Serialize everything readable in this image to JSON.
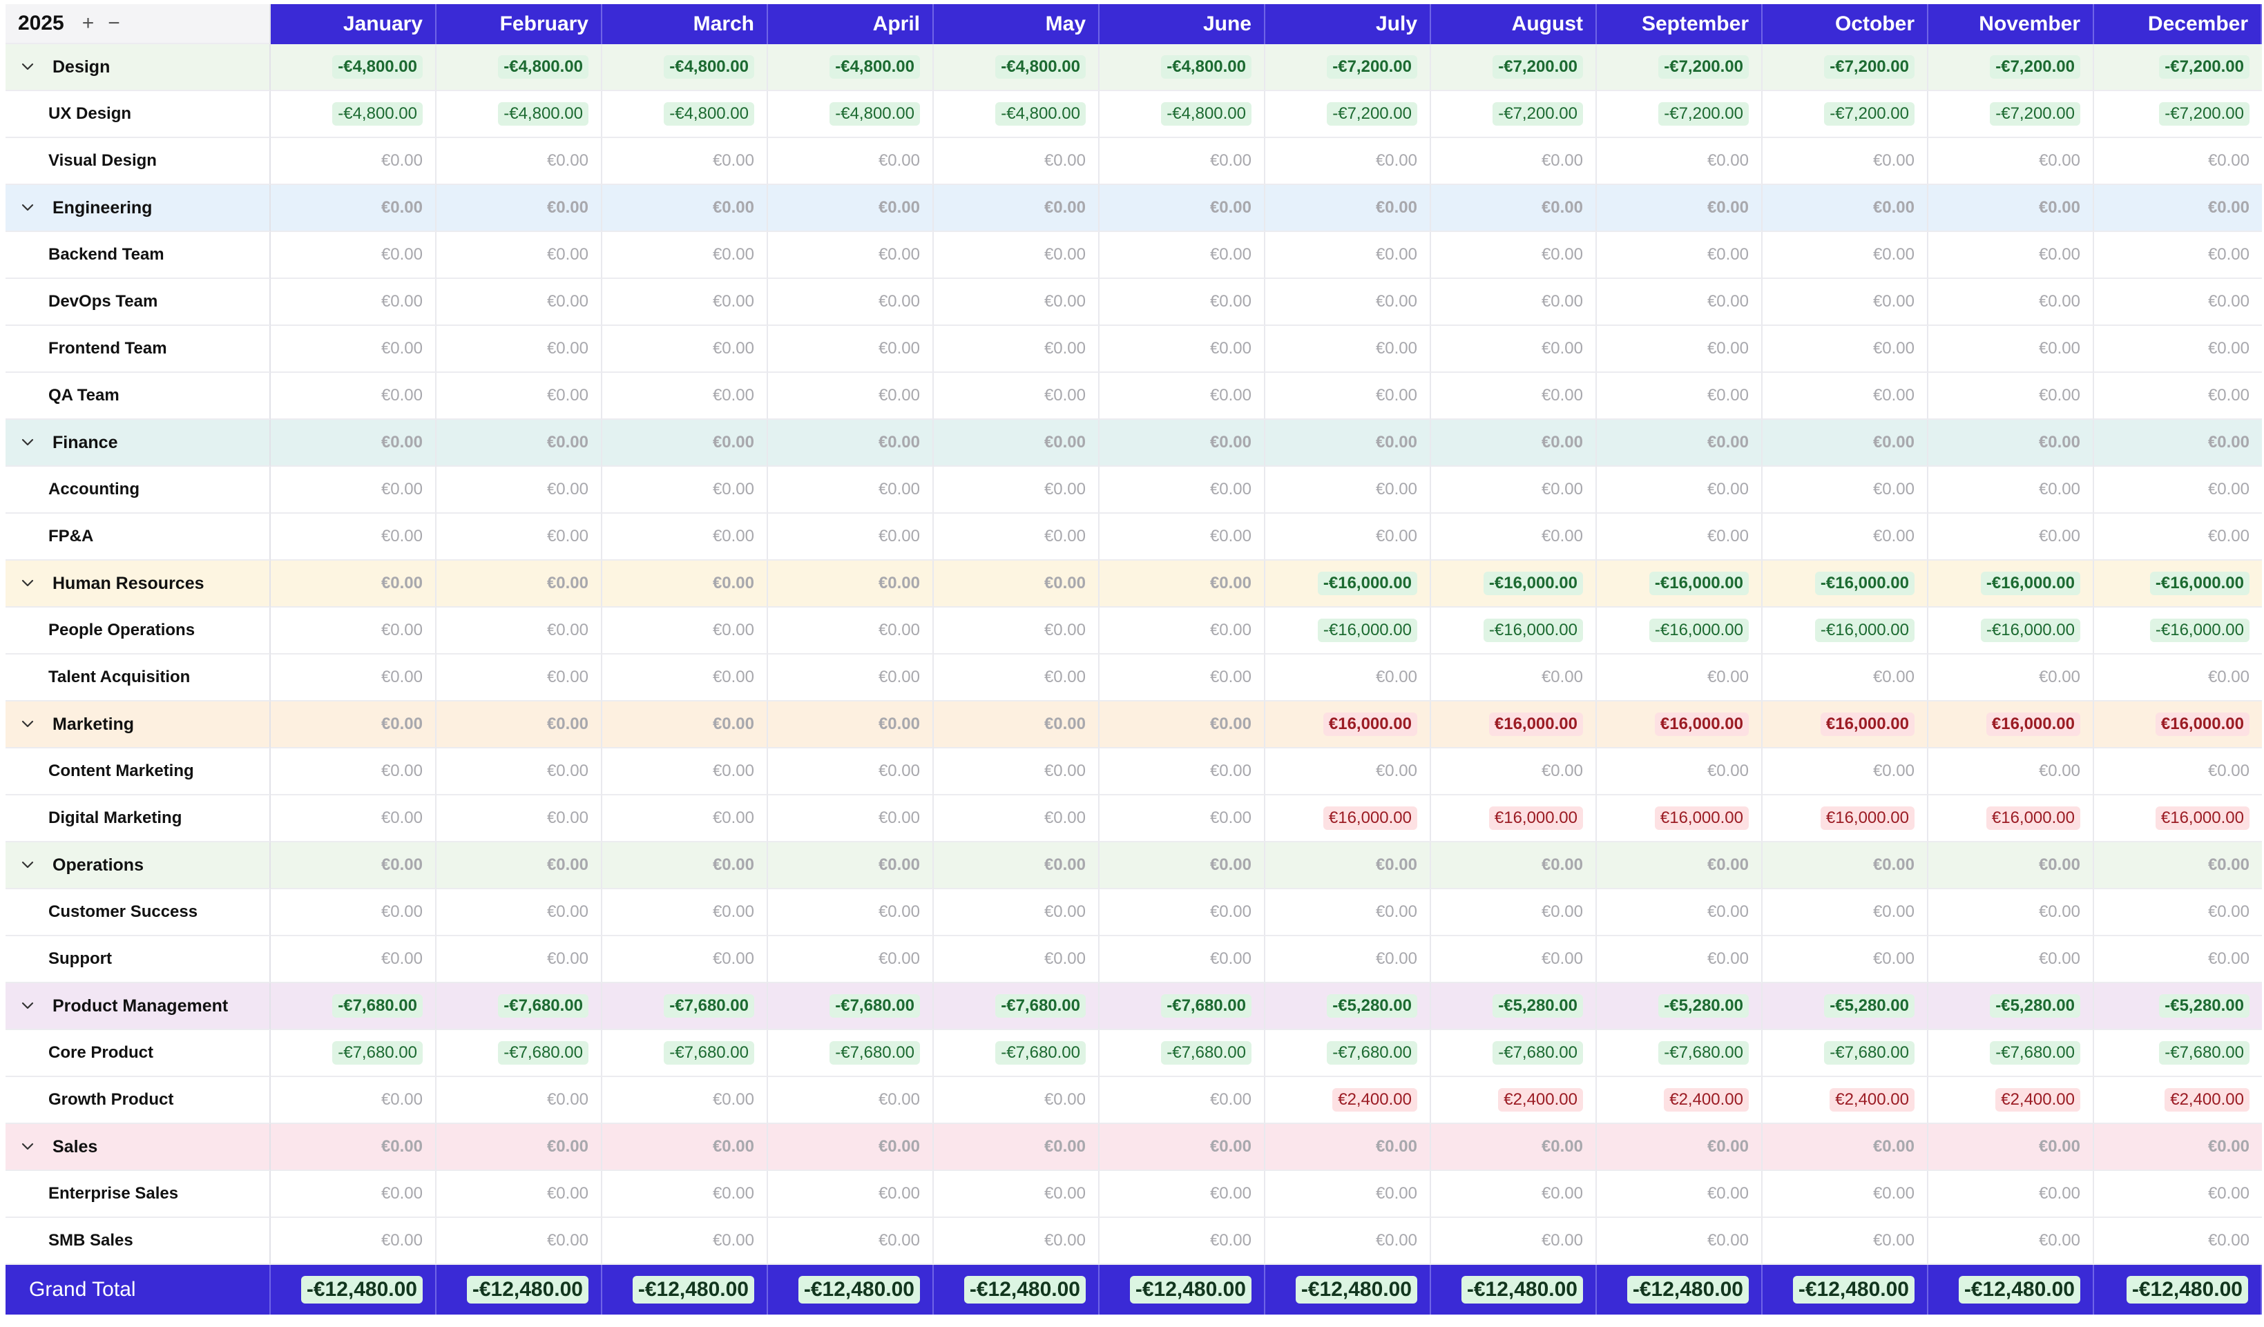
{
  "header": {
    "year": "2025",
    "add_symbol": "+",
    "remove_symbol": "−"
  },
  "months": [
    "January",
    "February",
    "March",
    "April",
    "May",
    "June",
    "July",
    "August",
    "September",
    "October",
    "November",
    "December"
  ],
  "groups": [
    {
      "name": "Design",
      "bg": "#eef6ec",
      "totals": [
        "-€4,800.00",
        "-€4,800.00",
        "-€4,800.00",
        "-€4,800.00",
        "-€4,800.00",
        "-€4,800.00",
        "-€7,200.00",
        "-€7,200.00",
        "-€7,200.00",
        "-€7,200.00",
        "-€7,200.00",
        "-€7,200.00"
      ],
      "children": [
        {
          "name": "UX Design",
          "values": [
            "-€4,800.00",
            "-€4,800.00",
            "-€4,800.00",
            "-€4,800.00",
            "-€4,800.00",
            "-€4,800.00",
            "-€7,200.00",
            "-€7,200.00",
            "-€7,200.00",
            "-€7,200.00",
            "-€7,200.00",
            "-€7,200.00"
          ]
        },
        {
          "name": "Visual Design",
          "values": [
            "€0.00",
            "€0.00",
            "€0.00",
            "€0.00",
            "€0.00",
            "€0.00",
            "€0.00",
            "€0.00",
            "€0.00",
            "€0.00",
            "€0.00",
            "€0.00"
          ]
        }
      ]
    },
    {
      "name": "Engineering",
      "bg": "#e6f1fb",
      "totals": [
        "€0.00",
        "€0.00",
        "€0.00",
        "€0.00",
        "€0.00",
        "€0.00",
        "€0.00",
        "€0.00",
        "€0.00",
        "€0.00",
        "€0.00",
        "€0.00"
      ],
      "children": [
        {
          "name": "Backend Team",
          "values": [
            "€0.00",
            "€0.00",
            "€0.00",
            "€0.00",
            "€0.00",
            "€0.00",
            "€0.00",
            "€0.00",
            "€0.00",
            "€0.00",
            "€0.00",
            "€0.00"
          ]
        },
        {
          "name": "DevOps Team",
          "values": [
            "€0.00",
            "€0.00",
            "€0.00",
            "€0.00",
            "€0.00",
            "€0.00",
            "€0.00",
            "€0.00",
            "€0.00",
            "€0.00",
            "€0.00",
            "€0.00"
          ]
        },
        {
          "name": "Frontend Team",
          "values": [
            "€0.00",
            "€0.00",
            "€0.00",
            "€0.00",
            "€0.00",
            "€0.00",
            "€0.00",
            "€0.00",
            "€0.00",
            "€0.00",
            "€0.00",
            "€0.00"
          ]
        },
        {
          "name": "QA Team",
          "values": [
            "€0.00",
            "€0.00",
            "€0.00",
            "€0.00",
            "€0.00",
            "€0.00",
            "€0.00",
            "€0.00",
            "€0.00",
            "€0.00",
            "€0.00",
            "€0.00"
          ]
        }
      ]
    },
    {
      "name": "Finance",
      "bg": "#e3f2f1",
      "totals": [
        "€0.00",
        "€0.00",
        "€0.00",
        "€0.00",
        "€0.00",
        "€0.00",
        "€0.00",
        "€0.00",
        "€0.00",
        "€0.00",
        "€0.00",
        "€0.00"
      ],
      "children": [
        {
          "name": "Accounting",
          "values": [
            "€0.00",
            "€0.00",
            "€0.00",
            "€0.00",
            "€0.00",
            "€0.00",
            "€0.00",
            "€0.00",
            "€0.00",
            "€0.00",
            "€0.00",
            "€0.00"
          ]
        },
        {
          "name": "FP&A",
          "values": [
            "€0.00",
            "€0.00",
            "€0.00",
            "€0.00",
            "€0.00",
            "€0.00",
            "€0.00",
            "€0.00",
            "€0.00",
            "€0.00",
            "€0.00",
            "€0.00"
          ]
        }
      ]
    },
    {
      "name": "Human Resources",
      "bg": "#fdf5e1",
      "totals": [
        "€0.00",
        "€0.00",
        "€0.00",
        "€0.00",
        "€0.00",
        "€0.00",
        "-€16,000.00",
        "-€16,000.00",
        "-€16,000.00",
        "-€16,000.00",
        "-€16,000.00",
        "-€16,000.00"
      ],
      "children": [
        {
          "name": "People Operations",
          "values": [
            "€0.00",
            "€0.00",
            "€0.00",
            "€0.00",
            "€0.00",
            "€0.00",
            "-€16,000.00",
            "-€16,000.00",
            "-€16,000.00",
            "-€16,000.00",
            "-€16,000.00",
            "-€16,000.00"
          ]
        },
        {
          "name": "Talent Acquisition",
          "values": [
            "€0.00",
            "€0.00",
            "€0.00",
            "€0.00",
            "€0.00",
            "€0.00",
            "€0.00",
            "€0.00",
            "€0.00",
            "€0.00",
            "€0.00",
            "€0.00"
          ]
        }
      ]
    },
    {
      "name": "Marketing",
      "bg": "#fdf0e0",
      "totals": [
        "€0.00",
        "€0.00",
        "€0.00",
        "€0.00",
        "€0.00",
        "€0.00",
        "€16,000.00",
        "€16,000.00",
        "€16,000.00",
        "€16,000.00",
        "€16,000.00",
        "€16,000.00"
      ],
      "children": [
        {
          "name": "Content Marketing",
          "values": [
            "€0.00",
            "€0.00",
            "€0.00",
            "€0.00",
            "€0.00",
            "€0.00",
            "€0.00",
            "€0.00",
            "€0.00",
            "€0.00",
            "€0.00",
            "€0.00"
          ]
        },
        {
          "name": "Digital Marketing",
          "values": [
            "€0.00",
            "€0.00",
            "€0.00",
            "€0.00",
            "€0.00",
            "€0.00",
            "€16,000.00",
            "€16,000.00",
            "€16,000.00",
            "€16,000.00",
            "€16,000.00",
            "€16,000.00"
          ]
        }
      ]
    },
    {
      "name": "Operations",
      "bg": "#eef6ec",
      "totals": [
        "€0.00",
        "€0.00",
        "€0.00",
        "€0.00",
        "€0.00",
        "€0.00",
        "€0.00",
        "€0.00",
        "€0.00",
        "€0.00",
        "€0.00",
        "€0.00"
      ],
      "children": [
        {
          "name": "Customer Success",
          "values": [
            "€0.00",
            "€0.00",
            "€0.00",
            "€0.00",
            "€0.00",
            "€0.00",
            "€0.00",
            "€0.00",
            "€0.00",
            "€0.00",
            "€0.00",
            "€0.00"
          ]
        },
        {
          "name": "Support",
          "values": [
            "€0.00",
            "€0.00",
            "€0.00",
            "€0.00",
            "€0.00",
            "€0.00",
            "€0.00",
            "€0.00",
            "€0.00",
            "€0.00",
            "€0.00",
            "€0.00"
          ]
        }
      ]
    },
    {
      "name": "Product Management",
      "bg": "#f2e6f4",
      "totals": [
        "-€7,680.00",
        "-€7,680.00",
        "-€7,680.00",
        "-€7,680.00",
        "-€7,680.00",
        "-€7,680.00",
        "-€5,280.00",
        "-€5,280.00",
        "-€5,280.00",
        "-€5,280.00",
        "-€5,280.00",
        "-€5,280.00"
      ],
      "children": [
        {
          "name": "Core Product",
          "values": [
            "-€7,680.00",
            "-€7,680.00",
            "-€7,680.00",
            "-€7,680.00",
            "-€7,680.00",
            "-€7,680.00",
            "-€7,680.00",
            "-€7,680.00",
            "-€7,680.00",
            "-€7,680.00",
            "-€7,680.00",
            "-€7,680.00"
          ]
        },
        {
          "name": "Growth Product",
          "values": [
            "€0.00",
            "€0.00",
            "€0.00",
            "€0.00",
            "€0.00",
            "€0.00",
            "€2,400.00",
            "€2,400.00",
            "€2,400.00",
            "€2,400.00",
            "€2,400.00",
            "€2,400.00"
          ]
        }
      ]
    },
    {
      "name": "Sales",
      "bg": "#fbe6ec",
      "totals": [
        "€0.00",
        "€0.00",
        "€0.00",
        "€0.00",
        "€0.00",
        "€0.00",
        "€0.00",
        "€0.00",
        "€0.00",
        "€0.00",
        "€0.00",
        "€0.00"
      ],
      "children": [
        {
          "name": "Enterprise Sales",
          "values": [
            "€0.00",
            "€0.00",
            "€0.00",
            "€0.00",
            "€0.00",
            "€0.00",
            "€0.00",
            "€0.00",
            "€0.00",
            "€0.00",
            "€0.00",
            "€0.00"
          ]
        },
        {
          "name": "SMB Sales",
          "values": [
            "€0.00",
            "€0.00",
            "€0.00",
            "€0.00",
            "€0.00",
            "€0.00",
            "€0.00",
            "€0.00",
            "€0.00",
            "€0.00",
            "€0.00",
            "€0.00"
          ]
        }
      ]
    }
  ],
  "grand_total": {
    "label": "Grand Total",
    "values": [
      "-€12,480.00",
      "-€12,480.00",
      "-€12,480.00",
      "-€12,480.00",
      "-€12,480.00",
      "-€12,480.00",
      "-€12,480.00",
      "-€12,480.00",
      "-€12,480.00",
      "-€12,480.00",
      "-€12,480.00",
      "-€12,480.00"
    ]
  },
  "colors": {
    "header_bg": "#3a2ad6",
    "negative_text": "#1c6a31",
    "negative_bg": "#dff4e4",
    "positive_text": "#9b1c24",
    "positive_bg": "#fde1e3",
    "zero_text": "#a8a8ad"
  },
  "icons": {
    "group_toggle": "chevron-down-icon"
  }
}
